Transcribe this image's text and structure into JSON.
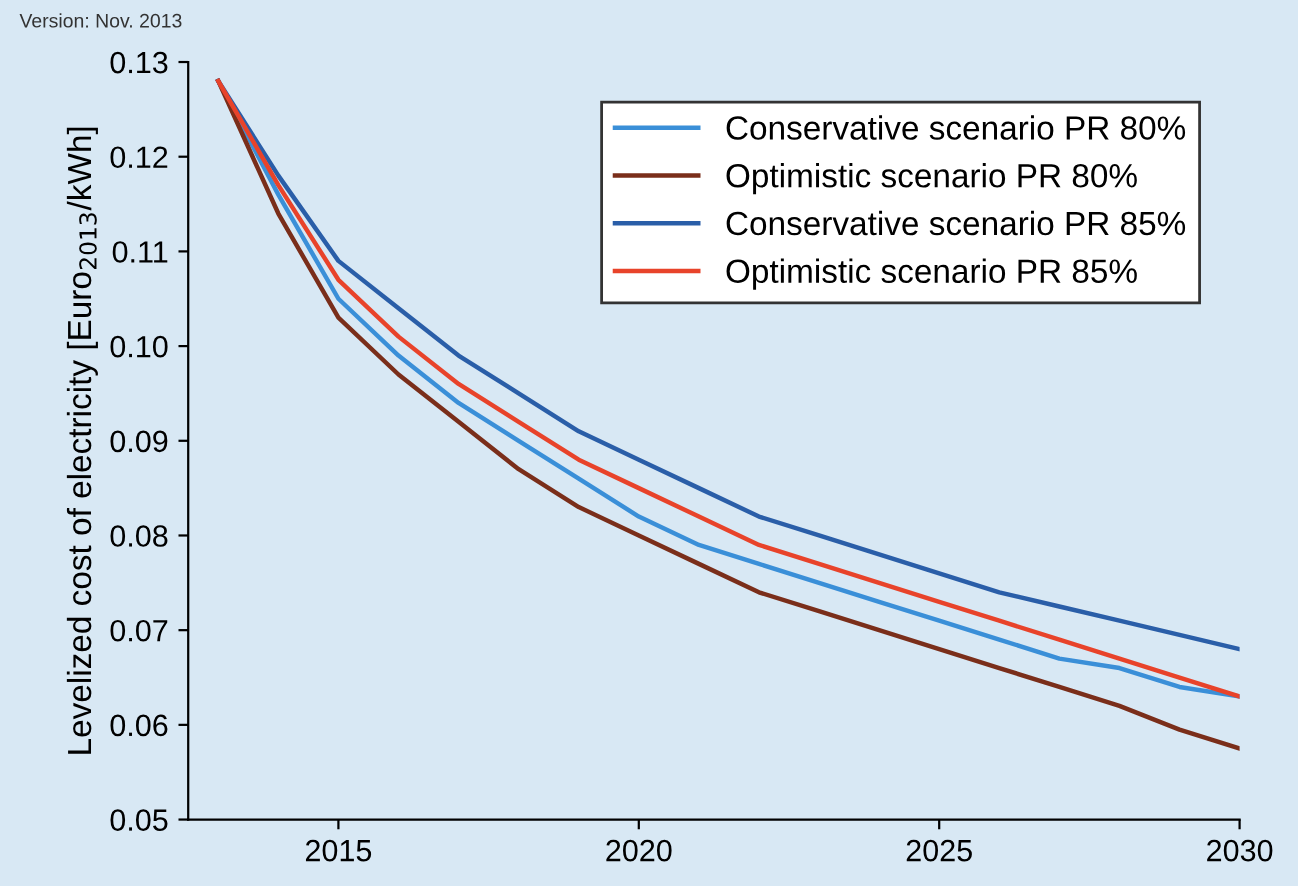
{
  "chart_data": {
    "type": "line",
    "ylabel": "Levelized cost of electricity [Euro$_{2013}$/kWh]",
    "annotations": [
      "Version: Nov. 2013"
    ],
    "x": [
      2013,
      2014,
      2015,
      2016,
      2017,
      2018,
      2019,
      2020,
      2021,
      2022,
      2023,
      2024,
      2025,
      2026,
      2027,
      2028,
      2029,
      2030
    ],
    "series": [
      {
        "name": "Conservative scenario PR 80%",
        "color": "#3a8fd8",
        "values": [
          0.128,
          0.116,
          0.105,
          0.099,
          0.094,
          0.09,
          0.086,
          0.082,
          0.079,
          0.077,
          0.075,
          0.073,
          0.071,
          0.069,
          0.067,
          0.066,
          0.064,
          0.063
        ]
      },
      {
        "name": "Optimistic scenario PR 80%",
        "color": "#7a2e1a",
        "values": [
          0.128,
          0.114,
          0.103,
          0.097,
          0.092,
          0.087,
          0.083,
          0.08,
          0.077,
          0.074,
          0.072,
          0.07,
          0.068,
          0.066,
          0.064,
          0.062,
          0.0595,
          0.0575
        ]
      },
      {
        "name": "Conservative scenario PR 85%",
        "color": "#2a5ea8",
        "values": [
          0.128,
          0.118,
          0.109,
          0.104,
          0.099,
          0.095,
          0.091,
          0.088,
          0.085,
          0.082,
          0.08,
          0.078,
          0.076,
          0.074,
          0.0725,
          0.071,
          0.0695,
          0.068
        ]
      },
      {
        "name": "Optimistic scenario PR 85%",
        "color": "#e8432a",
        "values": [
          0.128,
          0.117,
          0.107,
          0.101,
          0.096,
          0.092,
          0.088,
          0.085,
          0.082,
          0.079,
          0.077,
          0.075,
          0.073,
          0.071,
          0.069,
          0.067,
          0.065,
          0.063
        ]
      }
    ],
    "xlim": [
      2012.5,
      2030
    ],
    "ylim": [
      0.05,
      0.13
    ],
    "xticks": [
      2015,
      2020,
      2025,
      2030
    ],
    "yticks": [
      {
        "value": 0.05,
        "label": "0.05"
      },
      {
        "value": 0.06,
        "label": "0.06"
      },
      {
        "value": 0.07,
        "label": "0.07"
      },
      {
        "value": 0.08,
        "label": "0.08"
      },
      {
        "value": 0.09,
        "label": "0.09"
      },
      {
        "value": 0.1,
        "label": "0.10"
      },
      {
        "value": 0.11,
        "label": "0.11"
      },
      {
        "value": 0.12,
        "label": "0.12"
      },
      {
        "value": 0.13,
        "label": "0.13"
      }
    ],
    "grid": false,
    "legend": "top right",
    "marker": "none",
    "line_style": "solid"
  }
}
